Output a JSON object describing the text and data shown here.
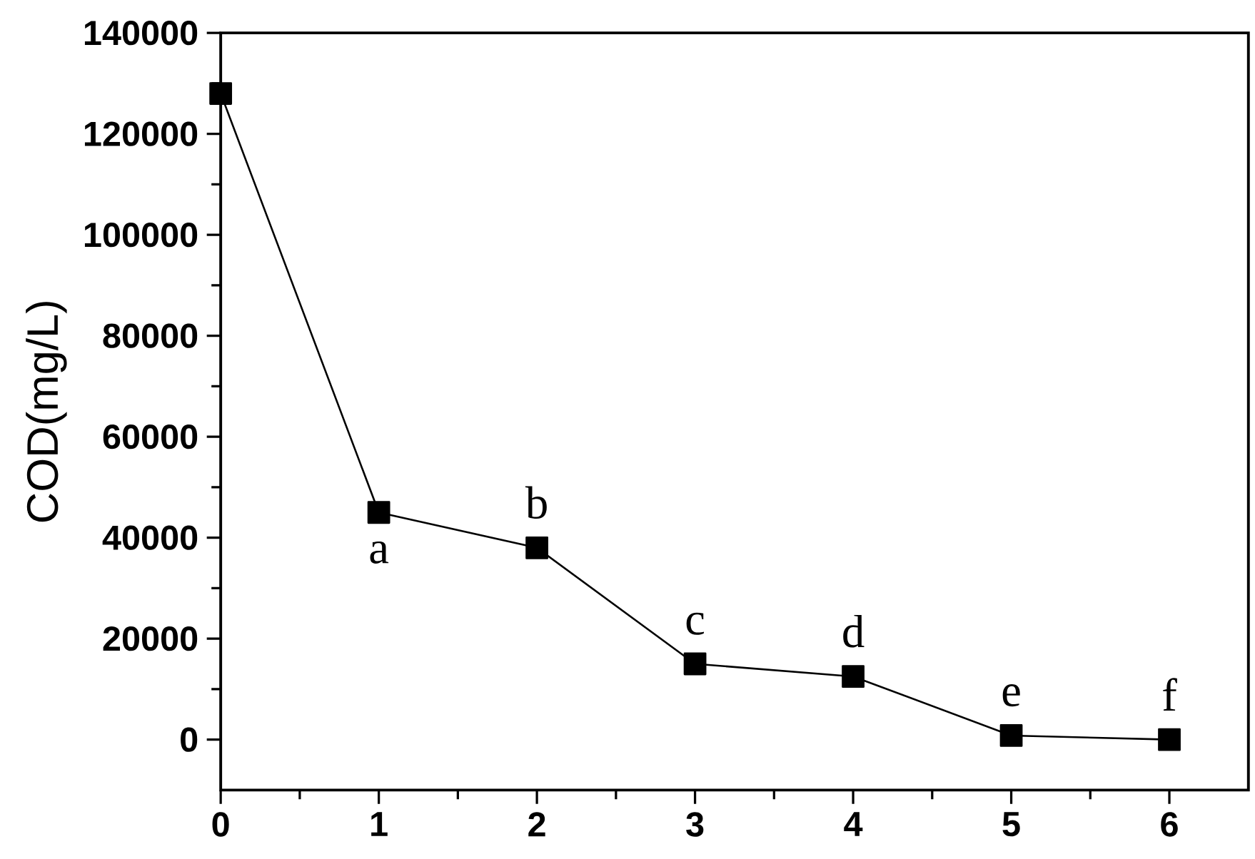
{
  "chart_data": {
    "type": "line",
    "ylabel": "COD(mg/L)",
    "x": [
      0,
      1,
      2,
      3,
      4,
      5,
      6
    ],
    "series": [
      {
        "color": "#000000",
        "values": [
          128000,
          45000,
          38000,
          15000,
          12500,
          800,
          0
        ]
      }
    ],
    "marker": "square",
    "line_style": "solid",
    "grid": false,
    "xlim": [
      0,
      6.5
    ],
    "xticks": [
      0,
      1,
      2,
      3,
      4,
      5,
      6
    ],
    "ylim": [
      -10000,
      140000
    ],
    "yticks": [
      0,
      20000,
      40000,
      60000,
      80000,
      100000,
      120000,
      140000
    ],
    "annotations": [
      {
        "text": "a",
        "x": 1,
        "y": 45000
      },
      {
        "text": "b",
        "x": 2,
        "y": 38000
      },
      {
        "text": "c",
        "x": 3,
        "y": 15000
      },
      {
        "text": "d",
        "x": 4,
        "y": 12500
      },
      {
        "text": "e",
        "x": 5,
        "y": 800
      },
      {
        "text": "f",
        "x": 6,
        "y": 0
      }
    ]
  }
}
